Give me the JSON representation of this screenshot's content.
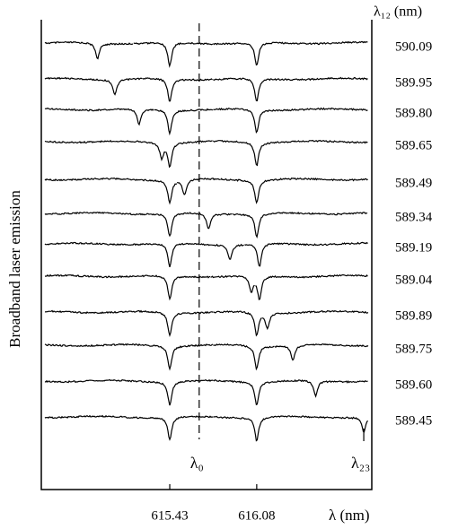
{
  "chart_data": {
    "type": "stacked-spectra",
    "y_label": "Broadband laser emission",
    "series_header": "λ₁₂ (nm)",
    "x_label": "λ (nm)",
    "xlim": [
      614.47,
      616.94
    ],
    "xticks": [
      615.43,
      616.08
    ],
    "annotations": [
      {
        "text": "λ₀",
        "x": 615.65,
        "style": "dashed"
      },
      {
        "text": "λ₂₃",
        "x": 616.88,
        "style": "tick"
      }
    ],
    "color": "#000000",
    "series": [
      {
        "name": "590.09",
        "dips": [
          614.89,
          615.43,
          616.08
        ]
      },
      {
        "name": "589.95",
        "dips": [
          615.02,
          615.43,
          616.08
        ]
      },
      {
        "name": "589.80",
        "dips": [
          615.2,
          615.43,
          616.08
        ]
      },
      {
        "name": "589.65",
        "dips": [
          615.37,
          615.43,
          616.08
        ]
      },
      {
        "name": "589.49",
        "dips": [
          615.43,
          615.54,
          616.08
        ]
      },
      {
        "name": "589.34",
        "dips": [
          615.43,
          615.72,
          616.08
        ]
      },
      {
        "name": "589.19",
        "dips": [
          615.43,
          615.88,
          616.1
        ]
      },
      {
        "name": "589.04",
        "dips": [
          615.43,
          616.04,
          616.1
        ]
      },
      {
        "name": "589.89",
        "dips": [
          615.43,
          616.08,
          616.16
        ]
      },
      {
        "name": "589.75",
        "dips": [
          615.43,
          616.08,
          616.35
        ]
      },
      {
        "name": "589.60",
        "dips": [
          615.43,
          616.08,
          616.52
        ]
      },
      {
        "name": "589.45",
        "dips": [
          615.43,
          616.08,
          616.88
        ]
      }
    ]
  }
}
